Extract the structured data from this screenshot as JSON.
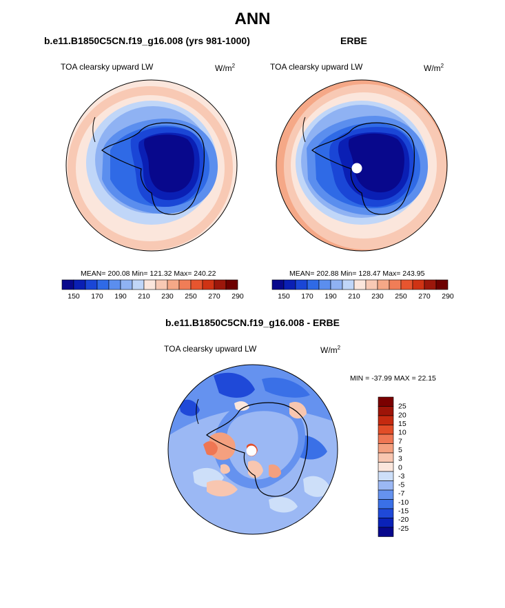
{
  "page_title": "ANN",
  "colors": {
    "abs_scale": [
      "#08088c",
      "#0a1fb4",
      "#1a46d6",
      "#2f6ae6",
      "#5b8eee",
      "#8fb2f3",
      "#c0d6f8",
      "#fbe6dc",
      "#f8c9b4",
      "#f5a887",
      "#f07d57",
      "#e7552f",
      "#cf3314",
      "#9c170b",
      "#6d0000"
    ],
    "diff_scale": [
      "#08088c",
      "#0a22b8",
      "#1f49d8",
      "#3a70e7",
      "#6592ef",
      "#9bb8f4",
      "#cddff9",
      "#fbe6dc",
      "#f8c6b0",
      "#f4a07f",
      "#ef7653",
      "#e24d28",
      "#c52a10",
      "#9e1408",
      "#7a0000"
    ]
  },
  "panels": [
    {
      "title": "b.e11.B1850C5CN.f19_g16.008 (yrs 981-1000)",
      "variable": "TOA clearsky upward LW",
      "units": "W/m",
      "units_exp": "2",
      "stats": "MEAN= 200.08  Min= 121.32  Max= 240.22",
      "colorbar_ticks": [
        "150",
        "170",
        "190",
        "210",
        "230",
        "250",
        "270",
        "290"
      ]
    },
    {
      "title": "ERBE",
      "variable": "TOA clearsky upward LW",
      "units": "W/m",
      "units_exp": "2",
      "stats": "MEAN= 202.88  Min= 128.47  Max= 243.95",
      "colorbar_ticks": [
        "150",
        "170",
        "190",
        "210",
        "230",
        "250",
        "270",
        "290"
      ]
    },
    {
      "title": "b.e11.B1850C5CN.f19_g16.008 - ERBE",
      "variable": "TOA clearsky upward LW",
      "units": "W/m",
      "units_exp": "2",
      "stats": "MIN = -37.99 MAX =  22.15",
      "colorbar_ticks": [
        "25",
        "20",
        "15",
        "10",
        "7",
        "5",
        "3",
        "0",
        "-3",
        "-5",
        "-7",
        "-10",
        "-15",
        "-20",
        "-25"
      ]
    }
  ],
  "chart_data": [
    {
      "type": "heatmap",
      "projection": "south polar stereographic",
      "title": "b.e11.B1850C5CN.f19_g16.008 (yrs 981-1000)",
      "variable": "TOA clearsky upward LW",
      "units": "W/m2",
      "mean": 200.08,
      "min": 121.32,
      "max": 240.22,
      "contour_levels": [
        150,
        160,
        170,
        180,
        190,
        200,
        210,
        220,
        230,
        240,
        250,
        260,
        270,
        280,
        290
      ]
    },
    {
      "type": "heatmap",
      "projection": "south polar stereographic",
      "title": "ERBE",
      "variable": "TOA clearsky upward LW",
      "units": "W/m2",
      "mean": 202.88,
      "min": 128.47,
      "max": 243.95,
      "contour_levels": [
        150,
        160,
        170,
        180,
        190,
        200,
        210,
        220,
        230,
        240,
        250,
        260,
        270,
        280,
        290
      ]
    },
    {
      "type": "heatmap",
      "projection": "south polar stereographic",
      "title": "b.e11.B1850C5CN.f19_g16.008 - ERBE",
      "variable": "TOA clearsky upward LW",
      "units": "W/m2",
      "min": -37.99,
      "max": 22.15,
      "contour_levels": [
        -25,
        -20,
        -15,
        -10,
        -7,
        -5,
        -3,
        0,
        3,
        5,
        7,
        10,
        15,
        20,
        25
      ]
    }
  ]
}
